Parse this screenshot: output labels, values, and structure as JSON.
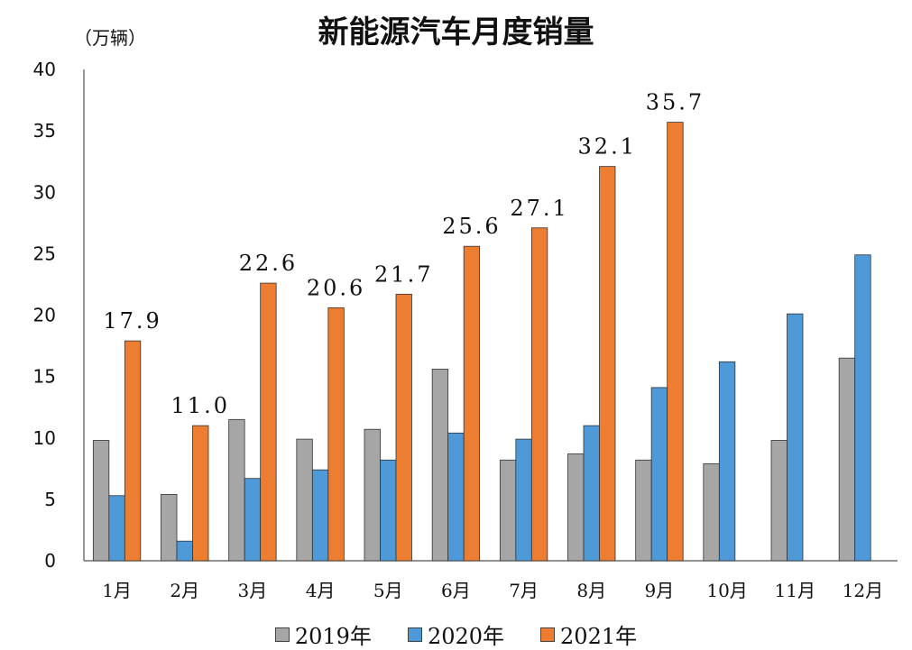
{
  "chart_data": {
    "type": "bar",
    "title": "新能源汽车月度销量",
    "ylabel": "（万辆）",
    "ylim": [
      0,
      40
    ],
    "yticks": [
      0,
      5,
      10,
      15,
      20,
      25,
      30,
      35,
      40
    ],
    "categories": [
      "1月",
      "2月",
      "3月",
      "4月",
      "5月",
      "6月",
      "7月",
      "8月",
      "9月",
      "10月",
      "11月",
      "12月"
    ],
    "series": [
      {
        "name": "2019年",
        "color": "#a6a6a6",
        "values": [
          9.8,
          5.4,
          11.5,
          9.9,
          10.7,
          15.6,
          8.2,
          8.7,
          8.2,
          7.9,
          9.8,
          16.5
        ]
      },
      {
        "name": "2020年",
        "color": "#4e9ad8",
        "values": [
          5.3,
          1.6,
          6.7,
          7.4,
          8.2,
          10.4,
          9.9,
          11.0,
          14.1,
          16.2,
          20.1,
          24.9
        ]
      },
      {
        "name": "2021年",
        "color": "#ed7d31",
        "values": [
          17.9,
          11.0,
          22.6,
          20.6,
          21.7,
          25.6,
          27.1,
          32.1,
          35.7,
          null,
          null,
          null
        ],
        "data_labels": [
          "17.9",
          "11.0",
          "22.6",
          "20.6",
          "21.7",
          "25.6",
          "27.1",
          "32.1",
          "35.7"
        ]
      }
    ],
    "legend": "bottom",
    "grid": false
  }
}
